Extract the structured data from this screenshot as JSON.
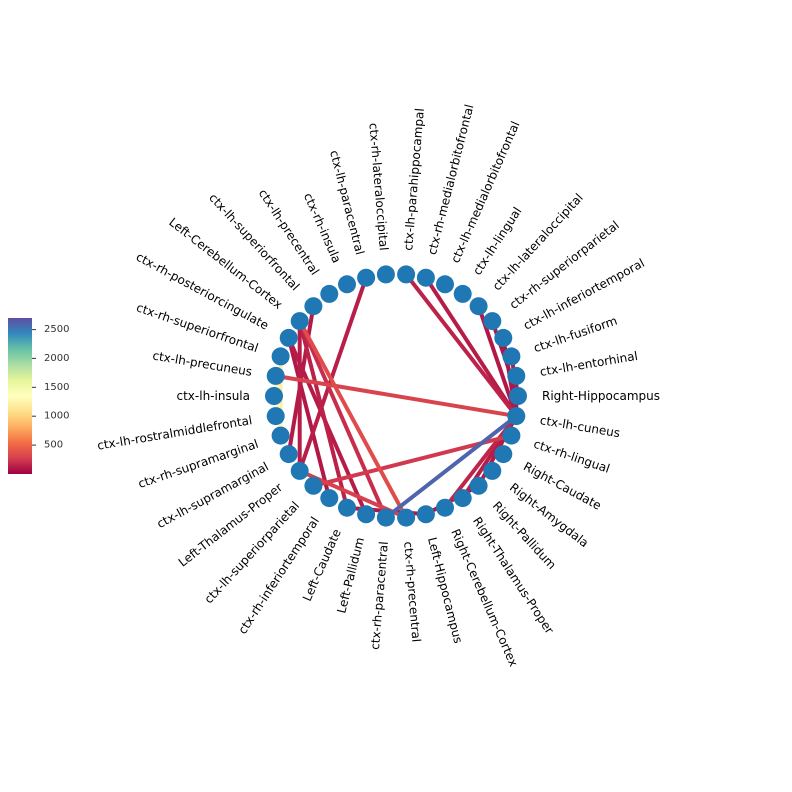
{
  "chart_data": {
    "type": "chord",
    "title": "",
    "nodes": [
      {
        "id": 0,
        "label": "Right-Hippocampus"
      },
      {
        "id": 1,
        "label": "ctx-lh-entorhinal"
      },
      {
        "id": 2,
        "label": "ctx-lh-fusiform"
      },
      {
        "id": 3,
        "label": "ctx-lh-inferiortemporal"
      },
      {
        "id": 4,
        "label": "ctx-rh-superiorparietal"
      },
      {
        "id": 5,
        "label": "ctx-lh-lateraloccipital"
      },
      {
        "id": 6,
        "label": "ctx-lh-lingual"
      },
      {
        "id": 7,
        "label": "ctx-lh-medialorbitofrontal"
      },
      {
        "id": 8,
        "label": "ctx-rh-medialorbitofrontal"
      },
      {
        "id": 9,
        "label": "ctx-lh-parahippocampal"
      },
      {
        "id": 10,
        "label": "ctx-rh-lateraloccipital"
      },
      {
        "id": 11,
        "label": "ctx-lh-paracentral"
      },
      {
        "id": 12,
        "label": "ctx-rh-insula"
      },
      {
        "id": 13,
        "label": "ctx-lh-precentral"
      },
      {
        "id": 14,
        "label": "ctx-lh-superiorfrontal"
      },
      {
        "id": 15,
        "label": "Left-Cerebellum-Cortex"
      },
      {
        "id": 16,
        "label": "ctx-rh-posteriorcingulate"
      },
      {
        "id": 17,
        "label": "ctx-rh-superiorfrontal"
      },
      {
        "id": 18,
        "label": "ctx-lh-precuneus"
      },
      {
        "id": 19,
        "label": "ctx-lh-insula"
      },
      {
        "id": 20,
        "label": "ctx-lh-rostralmiddlefrontal"
      },
      {
        "id": 21,
        "label": "ctx-rh-supramarginal"
      },
      {
        "id": 22,
        "label": "ctx-lh-supramarginal"
      },
      {
        "id": 23,
        "label": "Left-Thalamus-Proper"
      },
      {
        "id": 24,
        "label": "ctx-lh-superiorparietal"
      },
      {
        "id": 25,
        "label": "ctx-rh-inferiortemporal"
      },
      {
        "id": 26,
        "label": "Left-Caudate"
      },
      {
        "id": 27,
        "label": "Left-Pallidum"
      },
      {
        "id": 28,
        "label": "ctx-rh-paracentral"
      },
      {
        "id": 29,
        "label": "ctx-rh-precentral"
      },
      {
        "id": 30,
        "label": "Left-Hippocampus"
      },
      {
        "id": 31,
        "label": "Right-Cerebellum-Cortex"
      },
      {
        "id": 32,
        "label": "Right-Thalamus-Proper"
      },
      {
        "id": 33,
        "label": "Right-Pallidum"
      },
      {
        "id": 34,
        "label": "Right-Amygdala"
      },
      {
        "id": 35,
        "label": "Right-Caudate"
      },
      {
        "id": 36,
        "label": "ctx-rh-lingual"
      },
      {
        "id": 37,
        "label": "ctx-lh-cuneus"
      }
    ],
    "edges": [
      {
        "source": 37,
        "target": 9,
        "value": 150
      },
      {
        "source": 37,
        "target": 8,
        "value": 120
      },
      {
        "source": 37,
        "target": 18,
        "value": 300
      },
      {
        "source": 37,
        "target": 28,
        "value": 2600
      },
      {
        "source": 37,
        "target": 5,
        "value": 100
      },
      {
        "source": 37,
        "target": 3,
        "value": 90
      },
      {
        "source": 37,
        "target": 1,
        "value": 80
      },
      {
        "source": 37,
        "target": 31,
        "value": 160
      },
      {
        "source": 37,
        "target": 32,
        "value": 120
      },
      {
        "source": 37,
        "target": 33,
        "value": 110
      },
      {
        "source": 0,
        "target": 2,
        "value": 100
      },
      {
        "source": 0,
        "target": 4,
        "value": 90
      },
      {
        "source": 36,
        "target": 24,
        "value": 250
      },
      {
        "source": 11,
        "target": 23,
        "value": 130
      },
      {
        "source": 15,
        "target": 26,
        "value": 140
      },
      {
        "source": 15,
        "target": 28,
        "value": 200
      },
      {
        "source": 15,
        "target": 23,
        "value": 120
      },
      {
        "source": 15,
        "target": 29,
        "value": 350
      },
      {
        "source": 16,
        "target": 27,
        "value": 120
      },
      {
        "source": 16,
        "target": 25,
        "value": 100
      },
      {
        "source": 14,
        "target": 22,
        "value": 110
      },
      {
        "source": 23,
        "target": 29,
        "value": 280
      },
      {
        "source": 26,
        "target": 30,
        "value": 100
      },
      {
        "source": 30,
        "target": 33,
        "value": 90
      },
      {
        "source": 18,
        "target": 21,
        "value": 1300
      },
      {
        "source": 17,
        "target": 21,
        "value": 1200
      }
    ],
    "colorbar": {
      "colormap": "Spectral",
      "range": [
        0,
        2700
      ],
      "ticks": [
        500,
        1000,
        1500,
        2000,
        2500
      ],
      "tick_labels": [
        "500",
        "1000",
        "1500",
        "2000",
        "2500"
      ]
    },
    "node_color": "#1f77b4"
  }
}
